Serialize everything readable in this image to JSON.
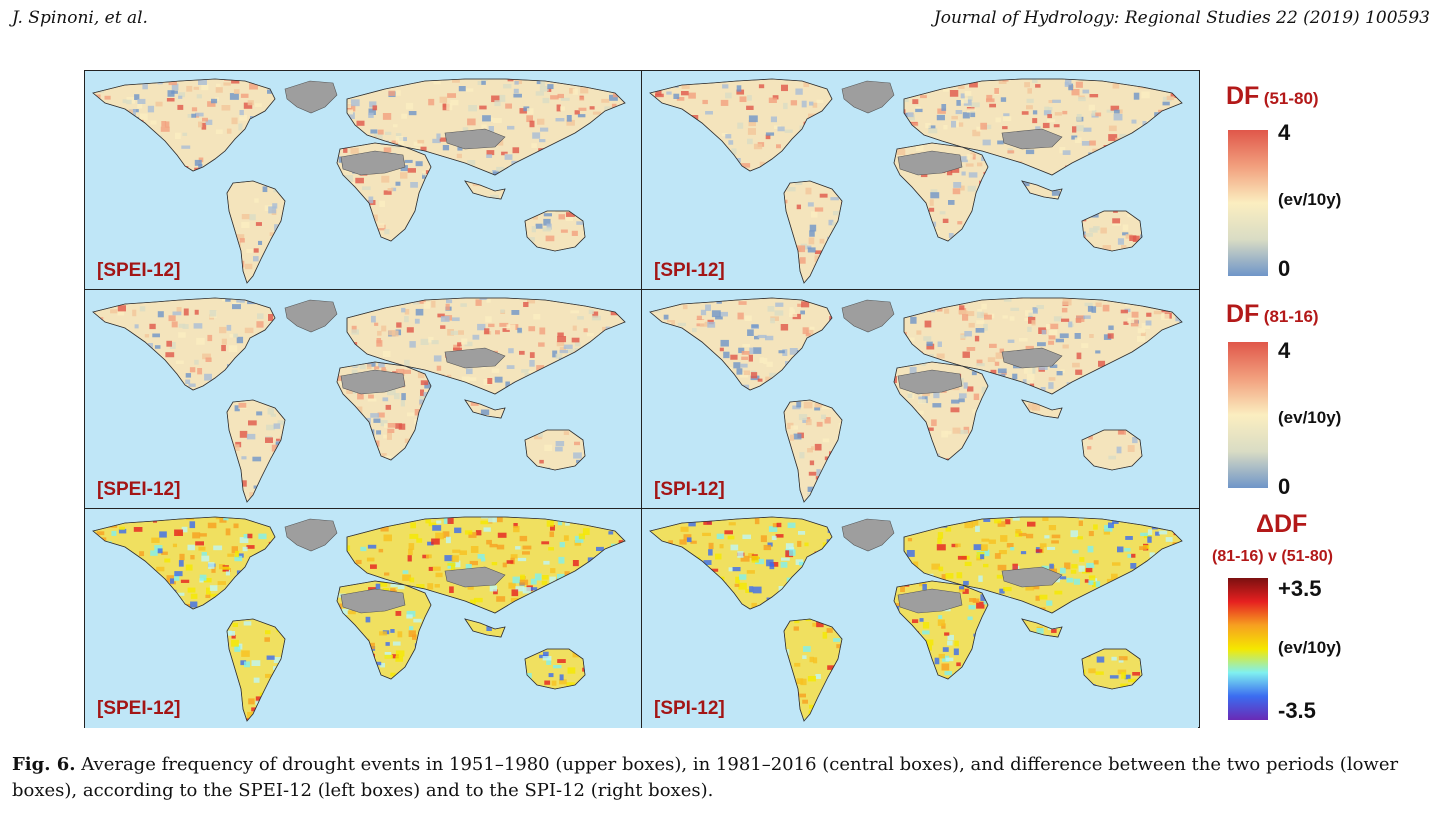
{
  "header": {
    "authors": "J. Spinoni, et al.",
    "journal": "Journal of Hydrology: Regional Studies 22 (2019) 100593"
  },
  "panels": [
    {
      "label": "[SPEI-12]",
      "scheme": "df"
    },
    {
      "label": "[SPI-12]",
      "scheme": "df"
    },
    {
      "label": "[SPEI-12]",
      "scheme": "df"
    },
    {
      "label": "[SPI-12]",
      "scheme": "df"
    },
    {
      "label": "[SPEI-12]",
      "scheme": "delta"
    },
    {
      "label": "[SPI-12]",
      "scheme": "delta"
    }
  ],
  "legends": [
    {
      "title": "DF",
      "period": "(51-80)",
      "top": "4",
      "unit": "(ev/10y)",
      "bottom": "0"
    },
    {
      "title": "DF",
      "period": "(81-16)",
      "top": "4",
      "unit": "(ev/10y)",
      "bottom": "0"
    },
    {
      "title": "ΔDF",
      "period": "(81-16) v (51-80)",
      "top": "+3.5",
      "unit": "(ev/10y)",
      "bottom": "-3.5"
    }
  ],
  "colors": {
    "ocean": "#bfe6f7",
    "no_data": "#9e9e9e",
    "title_red": "#b31919",
    "df_scale": [
      "#e0574a",
      "#f2a07e",
      "#fbeec0",
      "#d9dcc4",
      "#6f95c8"
    ],
    "delta_scale": [
      "#7b1010",
      "#e62020",
      "#f7a020",
      "#f5e800",
      "#7ff0f0",
      "#3b6cf0",
      "#6a2ab5"
    ]
  },
  "caption": {
    "label": "Fig. 6.",
    "text": " Average frequency of drought events in 1951–1980 (upper boxes), in 1981–2016 (central boxes), and difference between the two periods (lower boxes), according to the SPEI-12 (left boxes) and to the SPI-12 (right boxes)."
  }
}
